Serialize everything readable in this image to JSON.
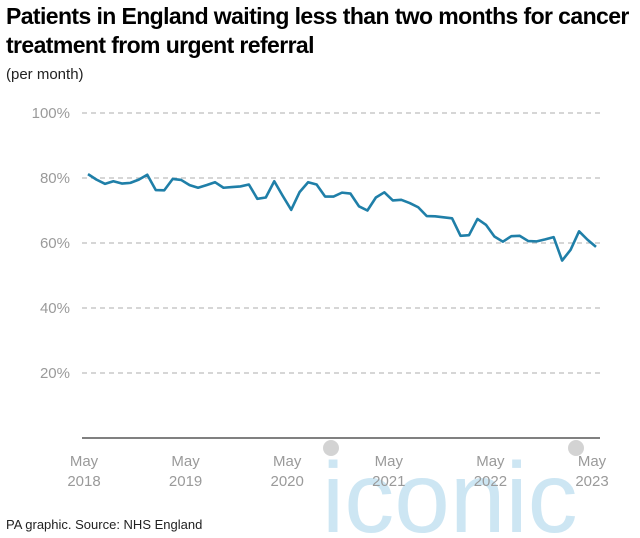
{
  "title": "Patients in England waiting less than two months for cancer treatment from urgent referral",
  "unit_note": "(per month)",
  "source": "PA graphic. Source: NHS England",
  "watermark": "iconic",
  "colors": {
    "line": "#1f7fa8",
    "grid": "#bdbdbd",
    "tick": "#9a9a9a",
    "watermark": "#c8e4f2"
  },
  "chart_data": {
    "type": "line",
    "title": "Patients in England waiting less than two months for cancer treatment from urgent referral",
    "xlabel": "",
    "ylabel": "(per month)",
    "ylim": [
      0,
      100
    ],
    "yticks": [
      20,
      40,
      60,
      80,
      100
    ],
    "ytick_labels": [
      "20%",
      "40%",
      "60%",
      "80%",
      "100%"
    ],
    "xtick_labels": [
      {
        "month": "May",
        "year": "2018"
      },
      {
        "month": "May",
        "year": "2019"
      },
      {
        "month": "May",
        "year": "2020"
      },
      {
        "month": "May",
        "year": "2021"
      },
      {
        "month": "May",
        "year": "2022"
      },
      {
        "month": "May",
        "year": "2023"
      }
    ],
    "grid": true,
    "series": [
      {
        "x_start": "2018-05",
        "x_end": "2023-05",
        "values": [
          81.2,
          79.5,
          78.2,
          79.0,
          78.3,
          78.5,
          79.5,
          81.0,
          76.3,
          76.2,
          79.7,
          79.4,
          77.8,
          77.0,
          77.8,
          78.7,
          77.0,
          77.2,
          77.4,
          78.0,
          73.6,
          74.0,
          79.0,
          74.5,
          70.2,
          75.7,
          78.7,
          78.0,
          74.3,
          74.3,
          75.5,
          75.2,
          71.3,
          70.0,
          74.0,
          75.6,
          73.1,
          73.3,
          72.3,
          71.0,
          68.3,
          68.2,
          67.9,
          67.6,
          62.2,
          62.4,
          67.4,
          65.6,
          62.0,
          60.4,
          62.1,
          62.2,
          60.6,
          60.5,
          61.1,
          61.8,
          54.6,
          57.9,
          63.6,
          61.0,
          58.8
        ]
      }
    ]
  }
}
